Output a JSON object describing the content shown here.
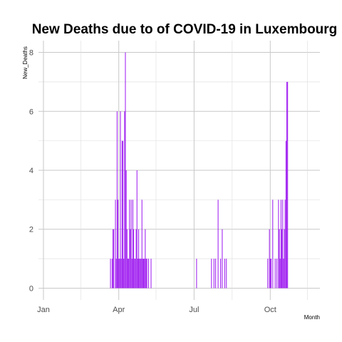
{
  "chart_data": {
    "type": "bar",
    "title": "New Deaths due to of COVID-19 in Luxembourg",
    "xlabel": "Month",
    "ylabel": "New_Deaths",
    "color": "#a020f0",
    "x_tick_labels": [
      {
        "date": "2020-01-01",
        "label": "Jan"
      },
      {
        "date": "2020-04-01",
        "label": "Apr"
      },
      {
        "date": "2020-07-01",
        "label": "Jul"
      },
      {
        "date": "2020-10-01",
        "label": "Oct"
      }
    ],
    "x_minor_gridlines": [
      "2020-02-15",
      "2020-05-16",
      "2020-08-16",
      "2020-11-15"
    ],
    "y_ticks": [
      0,
      2,
      4,
      6,
      8
    ],
    "xlim": [
      "2019-12-26",
      "2020-11-30"
    ],
    "ylim": [
      -0.4,
      8.4
    ],
    "grid": true,
    "dates": [
      "2020-03-22",
      "2020-03-24",
      "2020-03-25",
      "2020-03-26",
      "2020-03-28",
      "2020-03-29",
      "2020-03-30",
      "2020-03-31",
      "2020-04-01",
      "2020-04-02",
      "2020-04-03",
      "2020-04-04",
      "2020-04-05",
      "2020-04-06",
      "2020-04-07",
      "2020-04-08",
      "2020-04-09",
      "2020-04-10",
      "2020-04-11",
      "2020-04-12",
      "2020-04-13",
      "2020-04-14",
      "2020-04-15",
      "2020-04-16",
      "2020-04-17",
      "2020-04-18",
      "2020-04-19",
      "2020-04-20",
      "2020-04-21",
      "2020-04-22",
      "2020-04-23",
      "2020-04-24",
      "2020-04-25",
      "2020-04-26",
      "2020-04-27",
      "2020-04-28",
      "2020-04-29",
      "2020-04-30",
      "2020-05-01",
      "2020-05-02",
      "2020-05-03",
      "2020-05-04",
      "2020-05-05",
      "2020-05-07",
      "2020-05-10",
      "2020-07-04",
      "2020-07-22",
      "2020-07-25",
      "2020-07-27",
      "2020-07-30",
      "2020-08-02",
      "2020-08-04",
      "2020-08-07",
      "2020-08-09",
      "2020-09-28",
      "2020-09-30",
      "2020-10-01",
      "2020-10-02",
      "2020-10-04",
      "2020-10-07",
      "2020-10-09",
      "2020-10-11",
      "2020-10-12",
      "2020-10-13",
      "2020-10-14",
      "2020-10-15",
      "2020-10-16",
      "2020-10-17",
      "2020-10-18",
      "2020-10-19",
      "2020-10-20",
      "2020-10-21",
      "2020-10-22"
    ],
    "values": [
      1,
      1,
      2,
      2,
      3,
      1,
      6,
      3,
      1,
      1,
      6,
      1,
      5,
      5,
      1,
      6,
      8,
      4,
      2,
      1,
      1,
      3,
      2,
      3,
      1,
      3,
      2,
      1,
      1,
      2,
      4,
      1,
      2,
      1,
      1,
      1,
      3,
      1,
      1,
      1,
      2,
      1,
      1,
      1,
      1,
      1,
      1,
      1,
      1,
      3,
      1,
      2,
      1,
      1,
      1,
      2,
      1,
      1,
      3,
      1,
      1,
      3,
      2,
      1,
      3,
      2,
      3,
      1,
      2,
      3,
      5,
      7,
      7
    ]
  }
}
